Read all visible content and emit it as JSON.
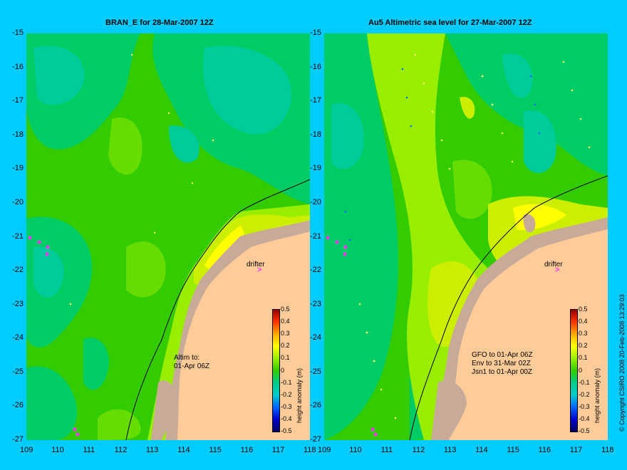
{
  "panels": [
    {
      "id": "left",
      "title": "BRAN_E for 28-Mar-2007 12Z",
      "annotation_lines": [
        "Altim to:",
        "01-Apr 06Z"
      ],
      "drifter_label": "drifter"
    },
    {
      "id": "right",
      "title": "Au5 Altimetric sea level  for 27-Mar-2007 12Z",
      "annotation_lines": [
        "GFO to 01-Apr 06Z",
        "Env to 31-Mar 02Z",
        "Jsn1 to 01-Apr 00Z"
      ],
      "drifter_label": "drifter"
    }
  ],
  "axes": {
    "x_ticks": [
      "109",
      "110",
      "111",
      "112",
      "113",
      "114",
      "115",
      "116",
      "117",
      "118"
    ],
    "y_ticks": [
      "-15",
      "-16",
      "-17",
      "-18",
      "-19",
      "-20",
      "-21",
      "-22",
      "-23",
      "-24",
      "-25",
      "-26",
      "-27"
    ],
    "lon_range": [
      109,
      118
    ],
    "lat_range": [
      -27,
      -15
    ]
  },
  "colorbar": {
    "title": "height anomaly (m)",
    "labels": [
      "0.5",
      "0.4",
      "0.3",
      "0.2",
      "0.1",
      "0",
      "-0.1",
      "-0.2",
      "-0.3",
      "-0.4",
      "-0.5"
    ]
  },
  "copyright": "© Copyright CSIRO 2008   20-Feb-2008 13:29:03",
  "colors": {
    "background": "#00ccff",
    "land": "#ffcc99",
    "shelf": "#c8aa99",
    "coastline": "#000000",
    "marker": "#ff33ff"
  }
}
